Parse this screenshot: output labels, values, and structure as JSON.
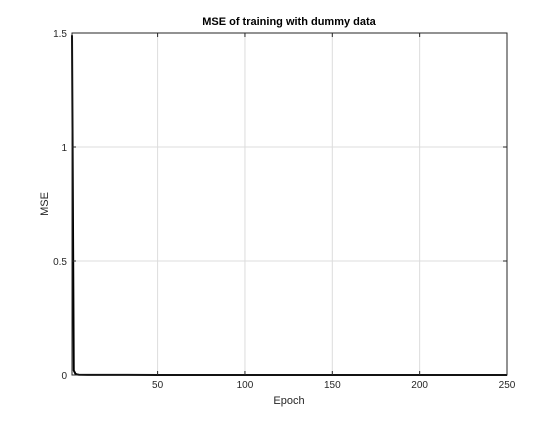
{
  "chart_data": {
    "type": "line",
    "title": "MSE of training with dummy data",
    "xlabel": "Epoch",
    "ylabel": "MSE",
    "xlim": [
      1,
      250
    ],
    "ylim": [
      0,
      1.5
    ],
    "xticks": [
      50,
      100,
      150,
      200,
      250
    ],
    "yticks": [
      0,
      0.5,
      1,
      1.5
    ],
    "xtick_labels": [
      "50",
      "100",
      "150",
      "200",
      "250"
    ],
    "ytick_labels": [
      "0",
      "0.5",
      "1",
      "1.5"
    ],
    "grid": true,
    "series": [
      {
        "x": [
          1,
          2,
          3,
          4,
          5,
          10,
          50,
          100,
          150,
          200,
          250
        ],
        "y": [
          1.49,
          0.02,
          0.005,
          0.002,
          0.001,
          0.0005,
          0.0002,
          0.0001,
          0.0001,
          0.0001,
          0.0001
        ]
      }
    ],
    "colors": {
      "line": "#000000",
      "axes_bg": "#ffffff",
      "figure_bg": "#ffffff",
      "grid": "#dcdcdc",
      "axis": "#262626"
    }
  }
}
